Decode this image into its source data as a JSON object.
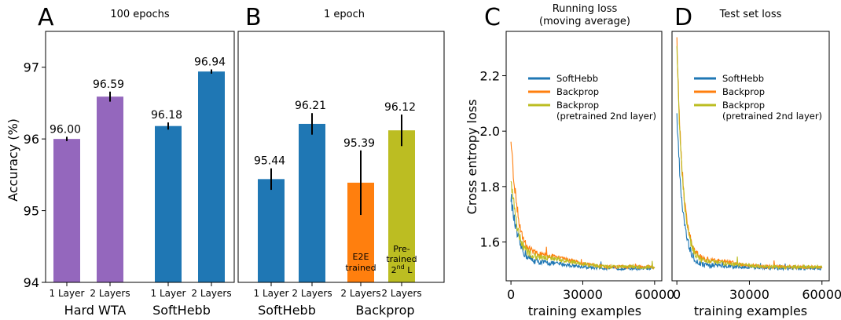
{
  "chart_data": [
    {
      "panel": "A",
      "type": "bar",
      "title": "100 epochs",
      "ylabel": "Accuracy (%)",
      "ylim": [
        94,
        97.5
      ],
      "yticks": [
        94,
        95,
        96,
        97
      ],
      "bar_colors": {
        "hard_wta": "#9467bd",
        "softhebb": "#1f77b4"
      },
      "groups": [
        {
          "name": "Hard WTA",
          "bars": [
            {
              "label": "1 Layer",
              "value": 96.0,
              "value_label": "96.00",
              "err": 0.03,
              "color": "#9467bd"
            },
            {
              "label": "2 Layers",
              "value": 96.59,
              "value_label": "96.59",
              "err": 0.07,
              "color": "#9467bd"
            }
          ]
        },
        {
          "name": "SoftHebb",
          "bars": [
            {
              "label": "1 Layer",
              "value": 96.18,
              "value_label": "96.18",
              "err": 0.05,
              "color": "#1f77b4"
            },
            {
              "label": "2 Layers",
              "value": 96.94,
              "value_label": "96.94",
              "err": 0.03,
              "color": "#1f77b4"
            }
          ]
        }
      ]
    },
    {
      "panel": "B",
      "type": "bar",
      "title": "1 epoch",
      "ylim": [
        94,
        97.5
      ],
      "groups": [
        {
          "name": "SoftHebb",
          "bars": [
            {
              "label": "1 Layer",
              "value": 95.44,
              "value_label": "95.44",
              "err": 0.15,
              "color": "#1f77b4"
            },
            {
              "label": "2 Layers",
              "value": 96.21,
              "value_label": "96.21",
              "err": 0.15,
              "color": "#1f77b4"
            }
          ]
        },
        {
          "name": "Backprop",
          "bars": [
            {
              "label": "2 Layers",
              "value": 95.39,
              "value_label": "95.39",
              "err": 0.45,
              "color": "#ff7f0e",
              "annotation": [
                "E2E",
                "trained"
              ]
            },
            {
              "label": "2 Layers",
              "value": 96.12,
              "value_label": "96.12",
              "err": 0.22,
              "color": "#bcbd22",
              "annotation": [
                "Pre-",
                "trained",
                "2",
                "nd",
                "L"
              ]
            }
          ]
        }
      ]
    },
    {
      "panel": "C",
      "type": "line",
      "title": [
        "Running loss",
        "(moving average)"
      ],
      "xlabel": "training examples",
      "ylabel": "Cross entropy loss",
      "xlim": [
        -2000,
        63000
      ],
      "ylim": [
        1.46,
        2.36
      ],
      "xticks": [
        0,
        30000,
        60000
      ],
      "yticks": [
        1.6,
        1.8,
        2.0,
        2.2
      ],
      "legend": "upper-right",
      "series": [
        {
          "name": "SoftHebb",
          "color": "#1f77b4",
          "start": 1.76,
          "end": 1.505,
          "mid": 1.535,
          "k": 3200
        },
        {
          "name": "Backprop",
          "color": "#ff7f0e",
          "start": 1.97,
          "end": 1.51,
          "mid": 1.575,
          "k": 3000
        },
        {
          "name": "Backprop (pretrained 2nd layer)",
          "legend_lines": [
            "Backprop",
            "(pretrained 2nd layer)"
          ],
          "color": "#bcbd22",
          "start": 1.83,
          "end": 1.51,
          "mid": 1.56,
          "k": 3000
        }
      ]
    },
    {
      "panel": "D",
      "type": "line",
      "title": "Test set loss",
      "xlabel": "training examples",
      "xlim": [
        -2000,
        63000
      ],
      "ylim": [
        1.46,
        2.36
      ],
      "xticks": [
        0,
        30000,
        60000
      ],
      "legend": "upper-right",
      "series": [
        {
          "name": "SoftHebb",
          "color": "#1f77b4",
          "start": 2.06,
          "end": 1.505,
          "mid": 1.52,
          "k": 2500
        },
        {
          "name": "Backprop",
          "color": "#ff7f0e",
          "start": 2.33,
          "end": 1.51,
          "mid": 1.545,
          "k": 2500
        },
        {
          "name": "Backprop (pretrained 2nd layer)",
          "legend_lines": [
            "Backprop",
            "(pretrained 2nd layer)"
          ],
          "color": "#bcbd22",
          "start": 2.3,
          "end": 1.51,
          "mid": 1.535,
          "k": 2500
        }
      ]
    }
  ]
}
